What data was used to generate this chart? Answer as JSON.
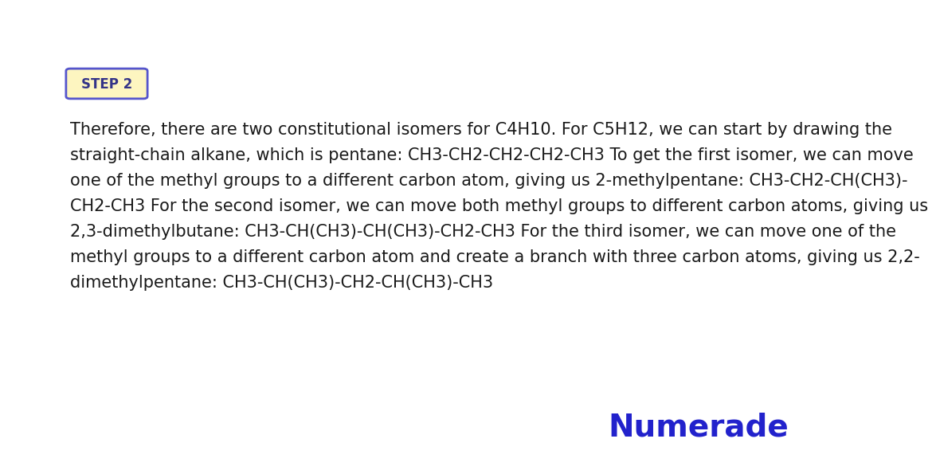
{
  "background_color": "#ffffff",
  "step_label": "STEP 2",
  "step_box_facecolor": "#fdf5c0",
  "step_box_edgecolor": "#5555cc",
  "step_text_color": "#333388",
  "step_fontsize": 12,
  "body_lines": [
    "Therefore, there are two constitutional isomers for C4H10. For C5H12, we can start by drawing the",
    "straight-chain alkane, which is pentane: CH3-CH2-CH2-CH2-CH3 To get the first isomer, we can move",
    "one of the methyl groups to a different carbon atom, giving us 2-methylpentane: CH3-CH2-CH(CH3)-",
    "CH2-CH3 For the second isomer, we can move both methyl groups to different carbon atoms, giving us",
    "2,3-dimethylbutane: CH3-CH(CH3)-CH(CH3)-CH2-CH3 For the third isomer, we can move one of the",
    "methyl groups to a different carbon atom and create a branch with three carbon atoms, giving us 2,2-",
    "dimethylpentane: CH3-CH(CH3)-CH2-CH(CH3)-CH3"
  ],
  "body_text_color": "#1a1a1a",
  "body_fontsize": 15,
  "numerade_text": "Numerade",
  "numerade_color": "#2222cc",
  "numerade_fontsize": 28
}
